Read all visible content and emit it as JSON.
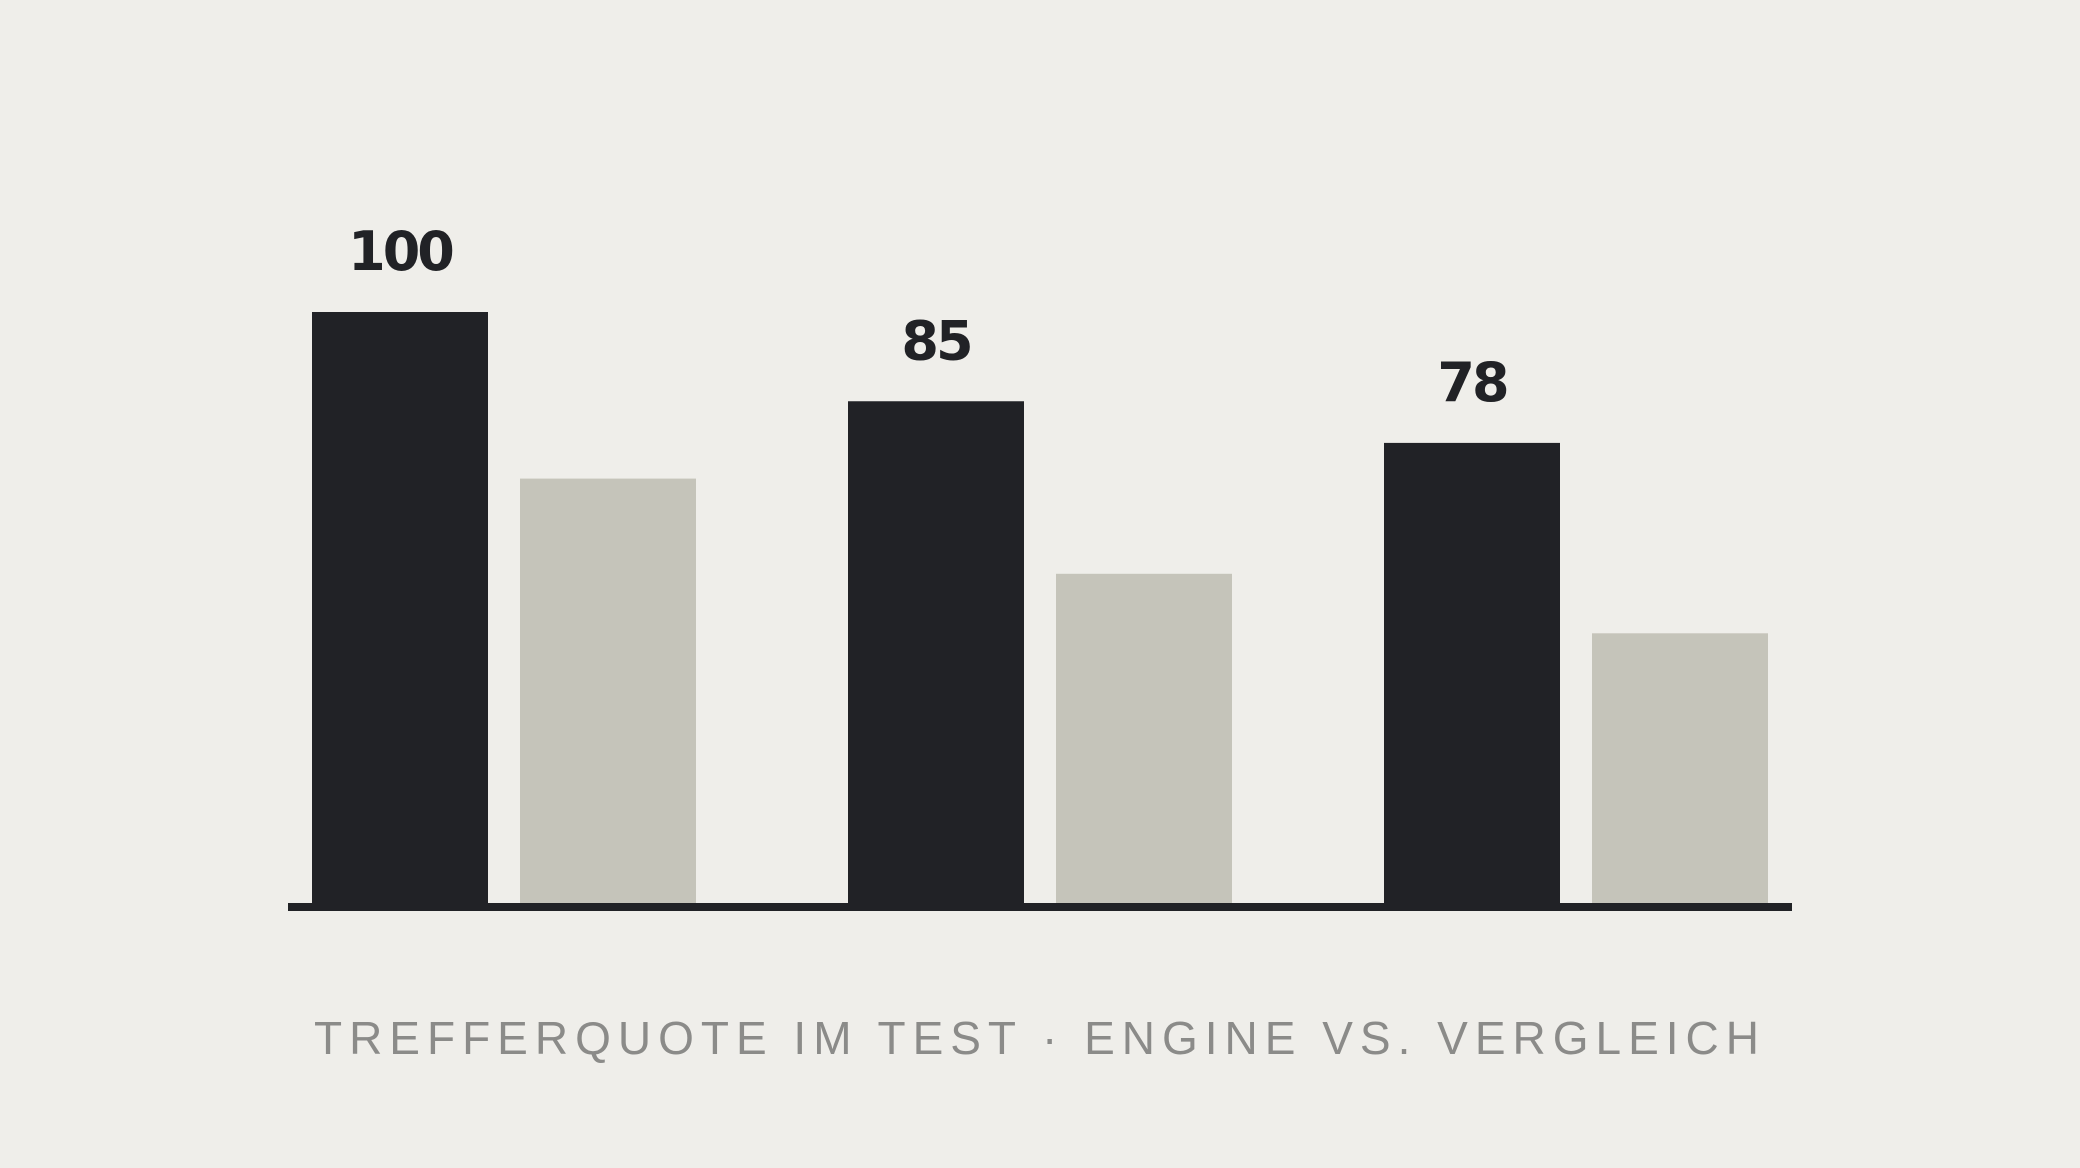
{
  "chart_data": {
    "type": "bar",
    "categories": [
      "",
      "",
      ""
    ],
    "series": [
      {
        "values": [
          100,
          85,
          78
        ]
      },
      {
        "values": [
          72,
          56,
          46
        ]
      }
    ],
    "data_labels": [
      "100",
      "85",
      "78"
    ],
    "ylim": [
      0,
      100
    ],
    "grid": false,
    "legend": "none",
    "caption": "TREFFERQUOTE IM TEST · ENGINE VS. VERGLEICH",
    "colors": {
      "background": "#efeeea",
      "primary": "#212226",
      "secondary": "#c5c4ba",
      "baseline": "#212226",
      "label": "#212226",
      "caption": "#8b8b89"
    }
  }
}
